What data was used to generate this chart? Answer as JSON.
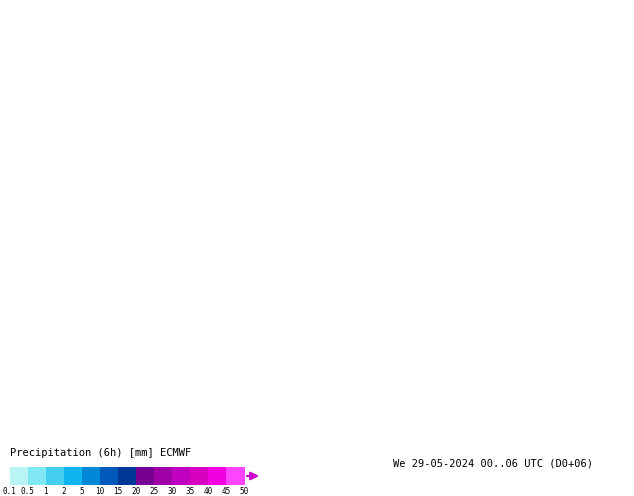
{
  "title_left": "Precipitation (6h) [mm] ECMWF",
  "title_right": "We 29-05-2024 00..06 UTC (D0+06)",
  "colorbar_levels": [
    "0.1",
    "0.5",
    "1",
    "2",
    "5",
    "10",
    "15",
    "20",
    "25",
    "30",
    "35",
    "40",
    "45",
    "50"
  ],
  "colorbar_colors": [
    "#b8f4f4",
    "#80e8f4",
    "#44cef0",
    "#10b4f0",
    "#0088d8",
    "#0058b8",
    "#003898",
    "#780090",
    "#a000a8",
    "#c000c0",
    "#d800c0",
    "#f000e0",
    "#ff44ff"
  ],
  "fig_width": 6.34,
  "fig_height": 4.9,
  "dpi": 100,
  "extent": [
    -130,
    -60,
    22,
    55
  ],
  "land_color": "#c8d89a",
  "ocean_color": "#d4eaf4",
  "lake_color": "#d4eaf4",
  "border_color": "#888888",
  "state_border_color": "#888888",
  "mountain_color": "#b0c07a"
}
